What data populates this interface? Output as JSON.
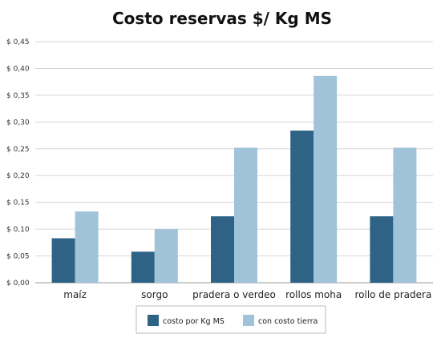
{
  "chart_data": {
    "type": "bar",
    "title": "Costo reservas $/ Kg MS",
    "xlabel": "",
    "ylabel": "",
    "categories": [
      "maíz",
      "sorgo",
      "pradera o verdeo",
      "rollos moha",
      "rollo de pradera"
    ],
    "series": [
      {
        "name": "costo por Kg MS",
        "color": "#2e6385",
        "values": [
          0.083,
          0.058,
          0.124,
          0.284,
          0.124
        ]
      },
      {
        "name": "con costo tierra",
        "color": "#a0c3d9",
        "values": [
          0.133,
          0.1,
          0.252,
          0.386,
          0.252
        ]
      }
    ],
    "ylim": [
      0,
      0.45
    ],
    "yticks": [
      {
        "value": 0.0,
        "label": "$ 0,00"
      },
      {
        "value": 0.05,
        "label": "$ 0,05"
      },
      {
        "value": 0.1,
        "label": "$ 0,10"
      },
      {
        "value": 0.15,
        "label": "$ 0,15"
      },
      {
        "value": 0.2,
        "label": "$ 0,20"
      },
      {
        "value": 0.25,
        "label": "$ 0,25"
      },
      {
        "value": 0.3,
        "label": "$ 0,30"
      },
      {
        "value": 0.35,
        "label": "$ 0,35"
      },
      {
        "value": 0.4,
        "label": "$ 0,40"
      },
      {
        "value": 0.45,
        "label": "$ 0,45"
      }
    ],
    "grid": true,
    "legend_position": "bottom-center"
  }
}
